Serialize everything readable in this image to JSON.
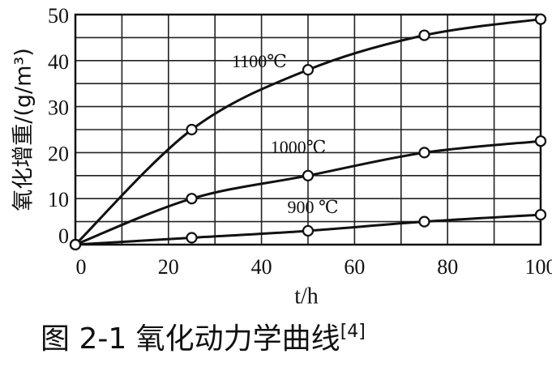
{
  "chart_data": {
    "type": "line",
    "caption": "图 2-1  氧化动力学曲线",
    "caption_ref": "[4]",
    "x_label": "t/h",
    "y_label": "氧化增重/(g/m³)",
    "x": [
      0,
      25,
      50,
      75,
      100
    ],
    "series": [
      {
        "name": "1100℃",
        "color": "#111111",
        "values": [
          0,
          25,
          38,
          45.5,
          49
        ]
      },
      {
        "name": "1000℃",
        "color": "#111111",
        "values": [
          0,
          10,
          15,
          20,
          22.5
        ]
      },
      {
        "name": "900 ℃",
        "color": "#111111",
        "values": [
          0,
          1.5,
          3,
          5,
          6.5
        ]
      }
    ],
    "xlim": [
      0,
      100
    ],
    "ylim": [
      0,
      50
    ],
    "xticks": [
      0,
      20,
      40,
      60,
      80,
      100
    ],
    "yticks": [
      0,
      10,
      20,
      30,
      40,
      50
    ],
    "x_grid": [
      0,
      10,
      20,
      30,
      40,
      50,
      60,
      70,
      80,
      90,
      100
    ],
    "y_grid": [
      0,
      5,
      10,
      15,
      20,
      25,
      30,
      35,
      40,
      45,
      50
    ],
    "grid": true,
    "markers": "open-circle"
  }
}
